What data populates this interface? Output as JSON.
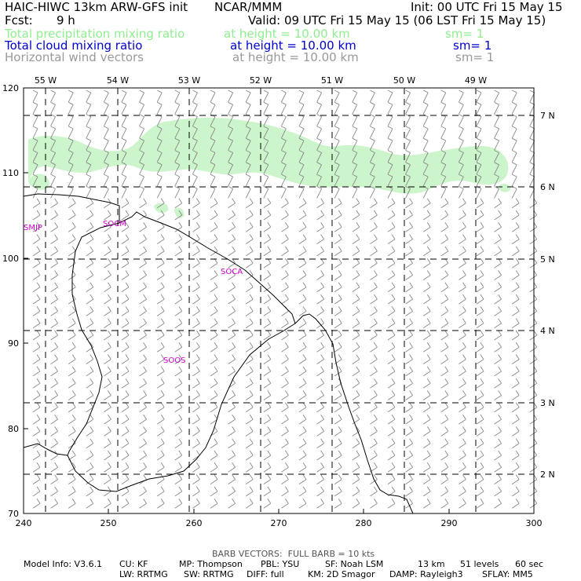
{
  "header": {
    "title": "HAIC-HIWC 13km ARW-GFS init",
    "org": "NCAR/MMM",
    "init": "Init: 00 UTC Fri 15 May 15",
    "fcst_label": "Fcst:",
    "fcst_value": "9 h",
    "valid": "Valid: 09 UTC Fri 15 May 15 (06 LST Fri 15 May 15)",
    "fields": [
      {
        "name": "Total precipitation mixing ratio",
        "height": "at height = 10.00 km",
        "sm": "sm= 1",
        "color": "#90ee90"
      },
      {
        "name": "Total cloud mixing ratio",
        "height": "at height = 10.00 km",
        "sm": "sm= 1",
        "color": "#0000cc"
      },
      {
        "name": "Horizontal wind vectors",
        "height": "at height = 10.00 km",
        "sm": "sm= 1",
        "color": "#999999"
      }
    ]
  },
  "map": {
    "x_ticks": [
      "240",
      "250",
      "260",
      "270",
      "280",
      "290",
      "300"
    ],
    "y_ticks": [
      "70",
      "80",
      "90",
      "100",
      "110",
      "120"
    ],
    "lon_labels": [
      "55 W",
      "54 W",
      "53 W",
      "52 W",
      "51 W",
      "50 W",
      "49 W"
    ],
    "lat_labels": [
      "7 N",
      "6 N",
      "5 N",
      "4 N",
      "3 N",
      "2 N"
    ],
    "stations": [
      "SMJP",
      "SOCM",
      "SOCA",
      "SOOS"
    ],
    "precip_color": "#ccf5cc",
    "barb_color": "#888888"
  },
  "footer": {
    "barb_note": "BARB VECTORS:  FULL BARB = 10 kts",
    "line1": [
      "Model Info: V3.6.1",
      "CU: KF",
      "MP: Thompson",
      "PBL: YSU",
      "SF: Noah LSM",
      "13 km",
      "51 levels",
      "60 sec"
    ],
    "line2": [
      "LW: RRTMG",
      "SW: RRTMG",
      "DIFF: full",
      "KM: 2D Smagor",
      "DAMP: Rayleigh3",
      "SFLAY: MM5"
    ]
  }
}
